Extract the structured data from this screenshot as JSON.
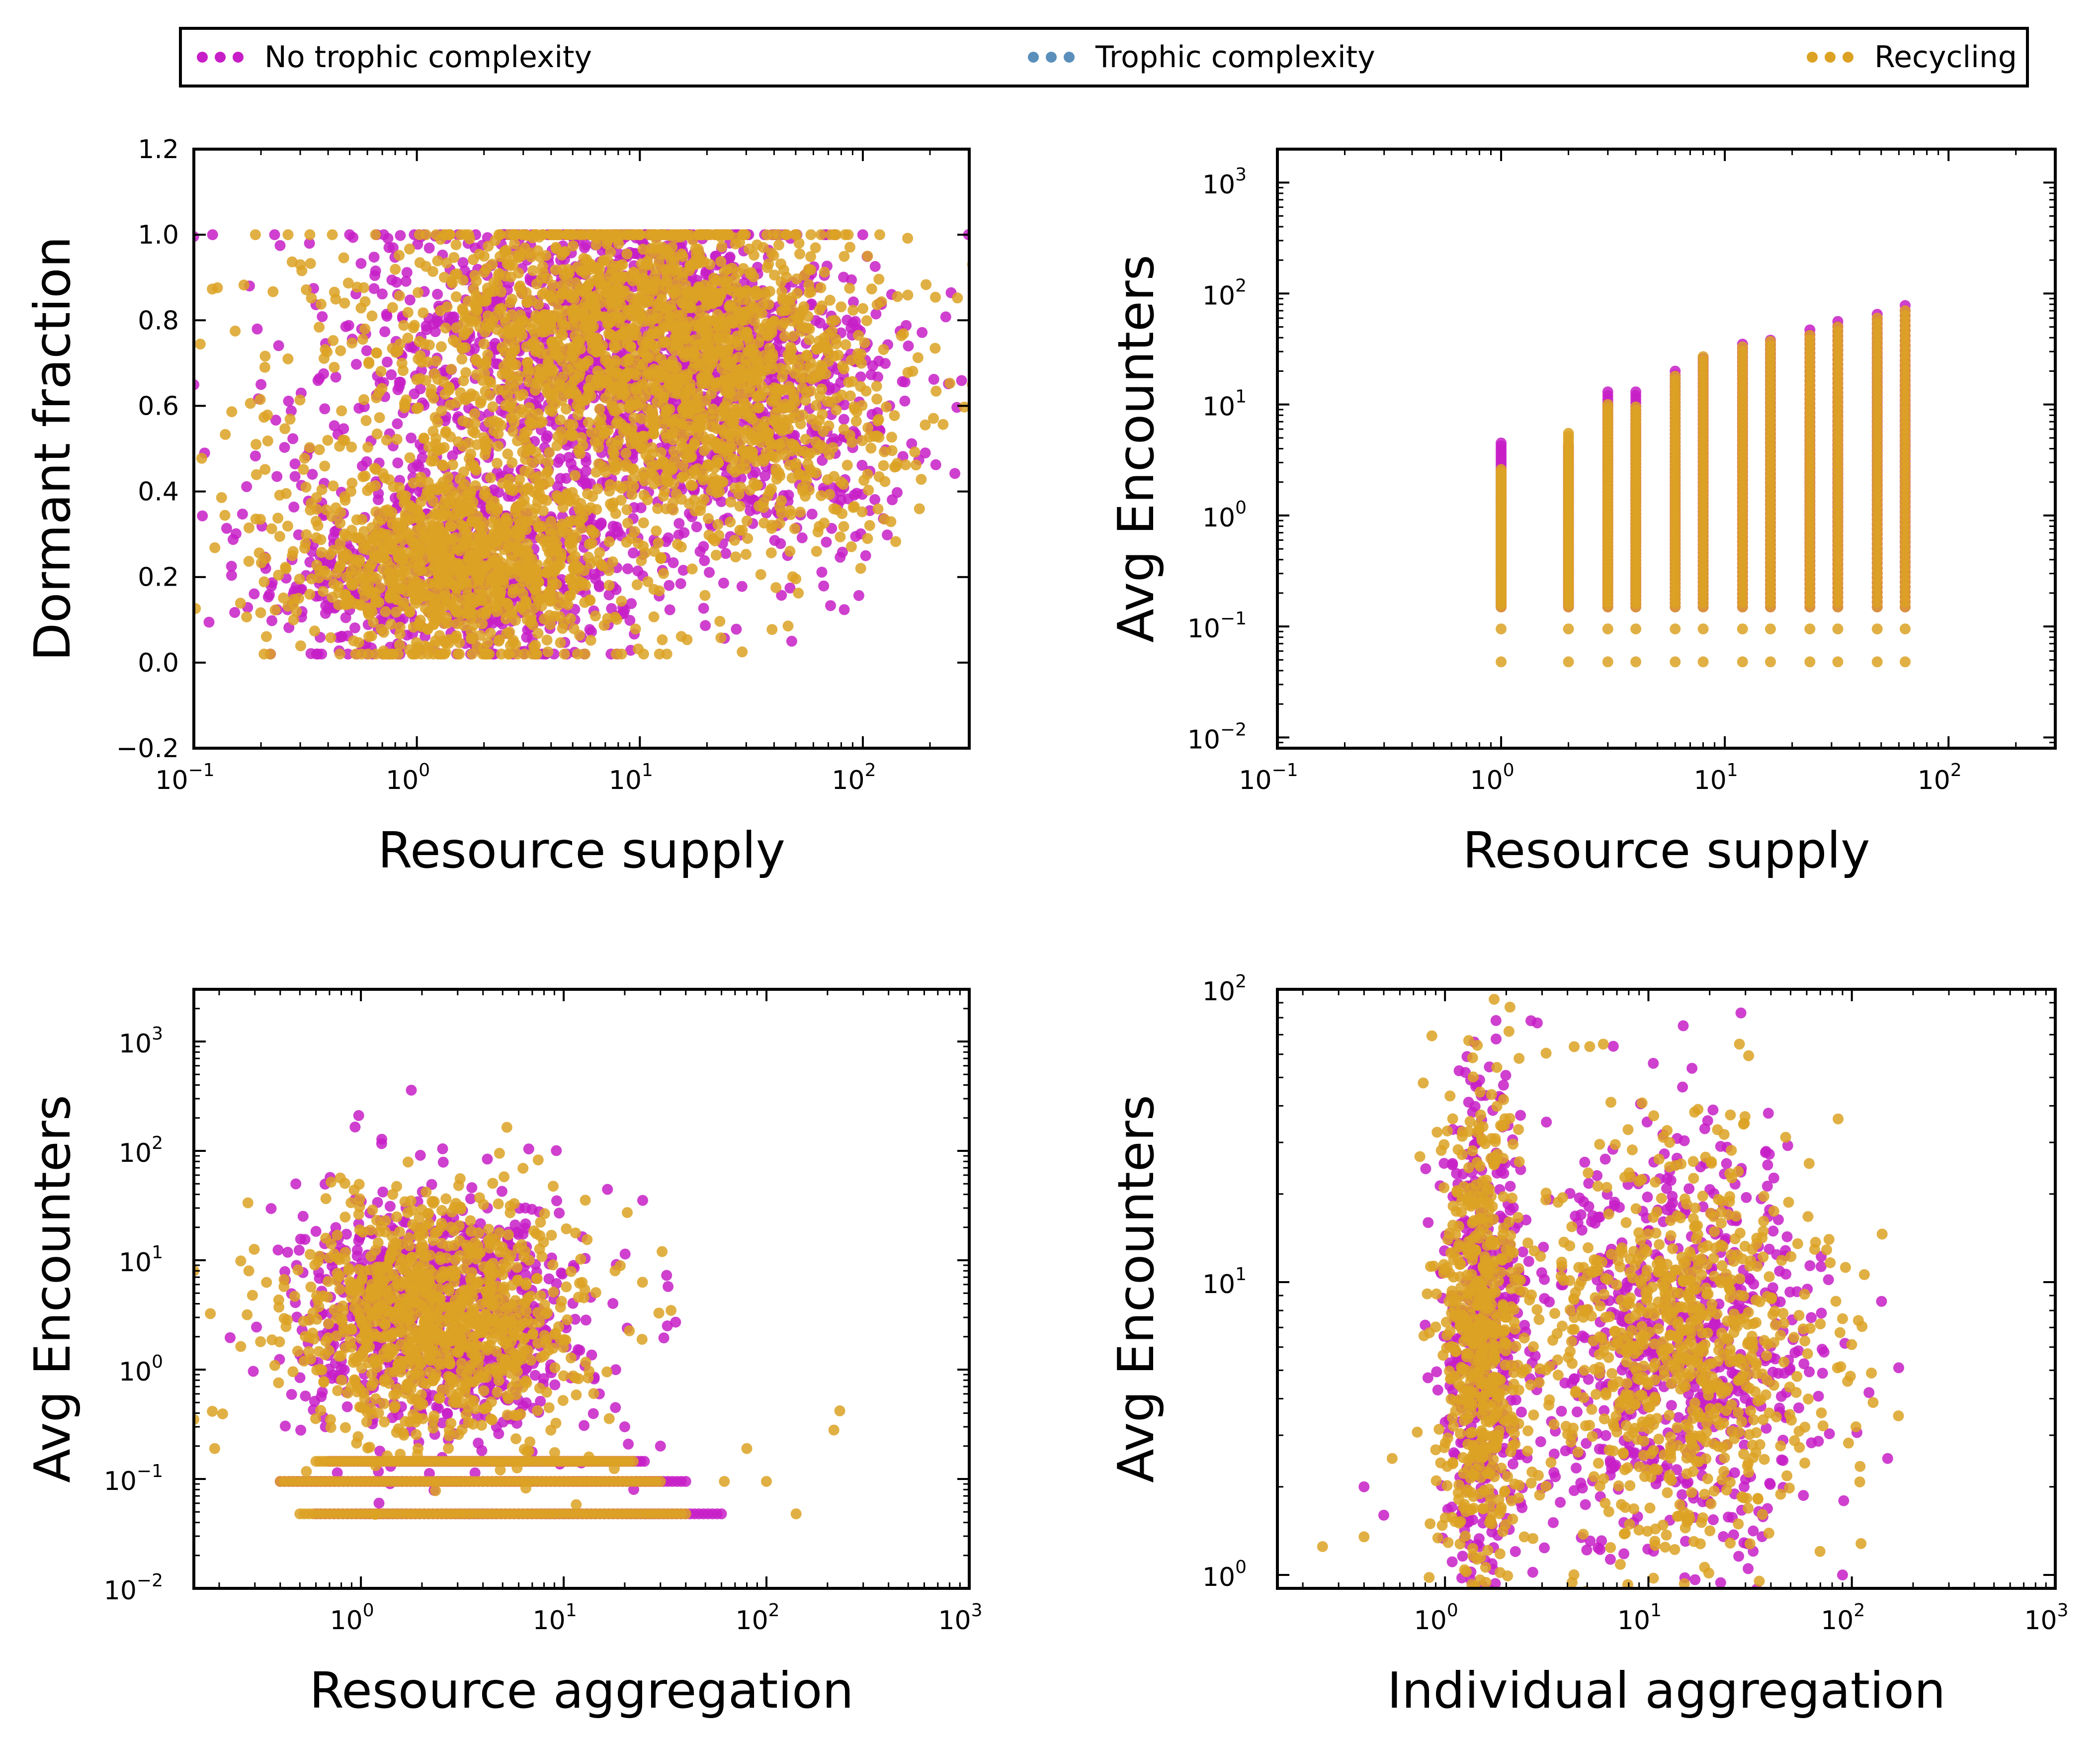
{
  "colors": {
    "no_trophic": "#c71ec7",
    "trophic": "#5a8fbb",
    "recycling": "#dca223"
  },
  "legend": [
    {
      "label": "No trophic complexity",
      "color": "#c71ec7"
    },
    {
      "label": "Trophic complexity",
      "color": "#5a8fbb"
    },
    {
      "label": "Recycling",
      "color": "#dca223"
    }
  ],
  "chart_data": [
    {
      "type": "scatter",
      "xlabel": "Resource supply",
      "ylabel": "Dormant fraction",
      "xscale": "log",
      "yscale": "linear",
      "xlim": [
        0.1,
        300
      ],
      "ylim": [
        -0.2,
        1.2
      ],
      "xticks": [
        {
          "v": 0.1,
          "base": "10",
          "exp": "−1"
        },
        {
          "v": 1,
          "base": "10",
          "exp": "0"
        },
        {
          "v": 10,
          "base": "10",
          "exp": "1"
        },
        {
          "v": 100,
          "base": "10",
          "exp": "2"
        }
      ],
      "yticks": [
        {
          "v": -0.2,
          "label": "−0.2"
        },
        {
          "v": 0.0,
          "label": "0.0"
        },
        {
          "v": 0.2,
          "label": "0.2"
        },
        {
          "v": 0.4,
          "label": "0.4"
        },
        {
          "v": 0.6,
          "label": "0.6"
        },
        {
          "v": 0.8,
          "label": "0.8"
        },
        {
          "v": 1.0,
          "label": "1.0"
        },
        {
          "v": 1.2,
          "label": "1.2"
        }
      ],
      "series": [
        {
          "name": "No trophic complexity",
          "color": "#c71ec7",
          "clusters": [
            {
              "x": [
                1.5,
                0.4
              ],
              "y": [
                0.2,
                0.1
              ],
              "n": 600
            },
            {
              "x": [
                9,
                0.45
              ],
              "y": [
                0.8,
                0.15
              ],
              "n": 900
            },
            {
              "x": [
                25,
                0.4
              ],
              "y": [
                0.6,
                0.18
              ],
              "n": 700
            },
            {
              "x": [
                2,
                0.6
              ],
              "y": [
                0.55,
                0.28
              ],
              "n": 500
            }
          ],
          "points": [
            [
              0.2,
              0.65
            ],
            [
              0.21,
              0.22
            ],
            [
              0.33,
              0.98
            ],
            [
              0.34,
              0.44
            ],
            [
              160,
              0.74
            ],
            [
              110,
              0.58
            ],
            [
              80,
              0.38
            ],
            [
              48,
              0.05
            ]
          ]
        },
        {
          "name": "Trophic complexity",
          "color": "#5a8fbb",
          "clusters": [],
          "points": []
        },
        {
          "name": "Recycling",
          "color": "#dca223",
          "clusters": [
            {
              "x": [
                1.5,
                0.35
              ],
              "y": [
                0.22,
                0.1
              ],
              "n": 900
            },
            {
              "x": [
                9,
                0.45
              ],
              "y": [
                0.8,
                0.15
              ],
              "n": 1000
            },
            {
              "x": [
                25,
                0.4
              ],
              "y": [
                0.6,
                0.18
              ],
              "n": 800
            },
            {
              "x": [
                2,
                0.6
              ],
              "y": [
                0.55,
                0.28
              ],
              "n": 500
            }
          ],
          "points": [
            [
              0.19,
              0.51
            ],
            [
              0.28,
              0.1
            ],
            [
              0.3,
              0.93
            ],
            [
              0.36,
              0.32
            ],
            [
              105,
              0.95
            ],
            [
              105,
              0.29
            ],
            [
              62,
              0.26
            ],
            [
              75,
              0.8
            ]
          ]
        }
      ]
    },
    {
      "type": "scatter",
      "xlabel": "Resource supply",
      "ylabel": "Avg Encounters",
      "xscale": "log",
      "yscale": "log",
      "xlim": [
        0.1,
        300
      ],
      "ylim": [
        0.008,
        2000
      ],
      "xticks": [
        {
          "v": 0.1,
          "base": "10",
          "exp": "−1"
        },
        {
          "v": 1,
          "base": "10",
          "exp": "0"
        },
        {
          "v": 10,
          "base": "10",
          "exp": "1"
        },
        {
          "v": 100,
          "base": "10",
          "exp": "2"
        }
      ],
      "yticks": [
        {
          "v": 0.01,
          "base": "10",
          "exp": "−2"
        },
        {
          "v": 0.1,
          "base": "10",
          "exp": "−1"
        },
        {
          "v": 1,
          "base": "10",
          "exp": "0"
        },
        {
          "v": 10,
          "base": "10",
          "exp": "1"
        },
        {
          "v": 100,
          "base": "10",
          "exp": "2"
        },
        {
          "v": 1000,
          "base": "10",
          "exp": "3"
        }
      ],
      "columns": [
        {
          "x": 1,
          "ymin": 0.048,
          "ymax": 2.6,
          "ymax_pink": 4.5
        },
        {
          "x": 2,
          "ymin": 0.048,
          "ymax": 5.5,
          "ymax_pink": 4.2
        },
        {
          "x": 3,
          "ymin": 0.048,
          "ymax": 10,
          "ymax_pink": 13
        },
        {
          "x": 4,
          "ymin": 0.048,
          "ymax": 9.5,
          "ymax_pink": 13
        },
        {
          "x": 6,
          "ymin": 0.048,
          "ymax": 18,
          "ymax_pink": 20
        },
        {
          "x": 8,
          "ymin": 0.048,
          "ymax": 27,
          "ymax_pink": 26
        },
        {
          "x": 12,
          "ymin": 0.048,
          "ymax": 33,
          "ymax_pink": 35
        },
        {
          "x": 16,
          "ymin": 0.048,
          "ymax": 37,
          "ymax_pink": 38
        },
        {
          "x": 24,
          "ymin": 0.048,
          "ymax": 42,
          "ymax_pink": 47
        },
        {
          "x": 32,
          "ymin": 0.048,
          "ymax": 50,
          "ymax_pink": 56
        },
        {
          "x": 48,
          "ymin": 0.048,
          "ymax": 60,
          "ymax_pink": 65
        },
        {
          "x": 64,
          "ymin": 0.048,
          "ymax": 70,
          "ymax_pink": 78
        }
      ]
    },
    {
      "type": "scatter",
      "xlabel": "Resource aggregation",
      "ylabel": "Avg Encounters",
      "xscale": "log",
      "yscale": "log",
      "xlim": [
        0.15,
        1000
      ],
      "ylim": [
        0.01,
        3000
      ],
      "xticks": [
        {
          "v": 1,
          "base": "10",
          "exp": "0"
        },
        {
          "v": 10,
          "base": "10",
          "exp": "1"
        },
        {
          "v": 100,
          "base": "10",
          "exp": "2"
        },
        {
          "v": 1000,
          "base": "10",
          "exp": "3"
        }
      ],
      "yticks": [
        {
          "v": 0.01,
          "base": "10",
          "exp": "−2"
        },
        {
          "v": 0.1,
          "base": "10",
          "exp": "−1"
        },
        {
          "v": 1,
          "base": "10",
          "exp": "0"
        },
        {
          "v": 10,
          "base": "10",
          "exp": "1"
        },
        {
          "v": 100,
          "base": "10",
          "exp": "2"
        },
        {
          "v": 1000,
          "base": "10",
          "exp": "3"
        }
      ],
      "series": [
        {
          "name": "No trophic complexity",
          "color": "#c71ec7",
          "clusters": [
            {
              "x": [
                2.5,
                0.35
              ],
              "y": [
                3,
                0.55
              ],
              "n": 900
            }
          ],
          "rows": [
            {
              "y": 0.048,
              "xmin": 0.6,
              "xmax": 60
            },
            {
              "y": 0.095,
              "xmin": 0.4,
              "xmax": 40
            },
            {
              "y": 0.145,
              "xmin": 0.7,
              "xmax": 25
            }
          ],
          "points": [
            [
              20,
              0.3
            ],
            [
              30,
              0.2
            ],
            [
              18,
              0.45
            ],
            [
              15,
              0.6
            ],
            [
              12,
              1.5
            ]
          ]
        },
        {
          "name": "Trophic complexity",
          "color": "#5a8fbb",
          "clusters": [],
          "rows": [],
          "points": []
        },
        {
          "name": "Recycling",
          "color": "#dca223",
          "clusters": [
            {
              "x": [
                2.5,
                0.35
              ],
              "y": [
                3,
                0.55
              ],
              "n": 1000
            }
          ],
          "rows": [
            {
              "y": 0.048,
              "xmin": 0.5,
              "xmax": 40
            },
            {
              "y": 0.095,
              "xmin": 0.4,
              "xmax": 30
            },
            {
              "y": 0.145,
              "xmin": 0.6,
              "xmax": 22
            }
          ],
          "points": [
            [
              0.15,
              8
            ],
            [
              0.15,
              0.35
            ],
            [
              0.19,
              0.19
            ],
            [
              0.28,
              8
            ],
            [
              0.32,
              1.8
            ],
            [
              230,
              0.42
            ],
            [
              215,
              0.28
            ],
            [
              100,
              0.095
            ],
            [
              140,
              0.048
            ],
            [
              62,
              0.095
            ],
            [
              80,
              0.19
            ]
          ]
        }
      ]
    },
    {
      "type": "scatter",
      "xlabel": "Individual aggregation",
      "ylabel": "Avg Encounters",
      "xscale": "log",
      "yscale": "log",
      "xlim": [
        0.15,
        1000
      ],
      "ylim": [
        0.9,
        100
      ],
      "xticks": [
        {
          "v": 1,
          "base": "10",
          "exp": "0"
        },
        {
          "v": 10,
          "base": "10",
          "exp": "1"
        },
        {
          "v": 100,
          "base": "10",
          "exp": "2"
        },
        {
          "v": 1000,
          "base": "10",
          "exp": "3"
        }
      ],
      "yticks": [
        {
          "v": 1,
          "base": "10",
          "exp": "0"
        },
        {
          "v": 10,
          "base": "10",
          "exp": "1"
        },
        {
          "v": 100,
          "base": "10",
          "exp": "2"
        }
      ],
      "series": [
        {
          "name": "No trophic complexity",
          "color": "#c71ec7",
          "clusters": [
            {
              "x": [
                1.5,
                0.1
              ],
              "y": [
                6,
                0.45
              ],
              "n": 500
            },
            {
              "x": [
                15,
                0.35
              ],
              "y": [
                6,
                0.35
              ],
              "n": 700
            }
          ],
          "points": [
            [
              170,
              5.1
            ],
            [
              150,
              2.5
            ],
            [
              0.5,
              1.6
            ],
            [
              0.4,
              2.0
            ],
            [
              90,
              1.0
            ]
          ]
        },
        {
          "name": "Trophic complexity",
          "color": "#5a8fbb",
          "clusters": [],
          "points": []
        },
        {
          "name": "Recycling",
          "color": "#dca223",
          "clusters": [
            {
              "x": [
                1.5,
                0.1
              ],
              "y": [
                6,
                0.45
              ],
              "n": 600
            },
            {
              "x": [
                15,
                0.35
              ],
              "y": [
                6,
                0.35
              ],
              "n": 800
            }
          ],
          "points": [
            [
              0.25,
              1.25
            ],
            [
              0.4,
              1.35
            ],
            [
              0.55,
              2.5
            ],
            [
              6,
              65
            ],
            [
              28,
              65
            ],
            [
              90,
              7.5
            ],
            [
              70,
              7.2
            ]
          ]
        }
      ]
    }
  ]
}
